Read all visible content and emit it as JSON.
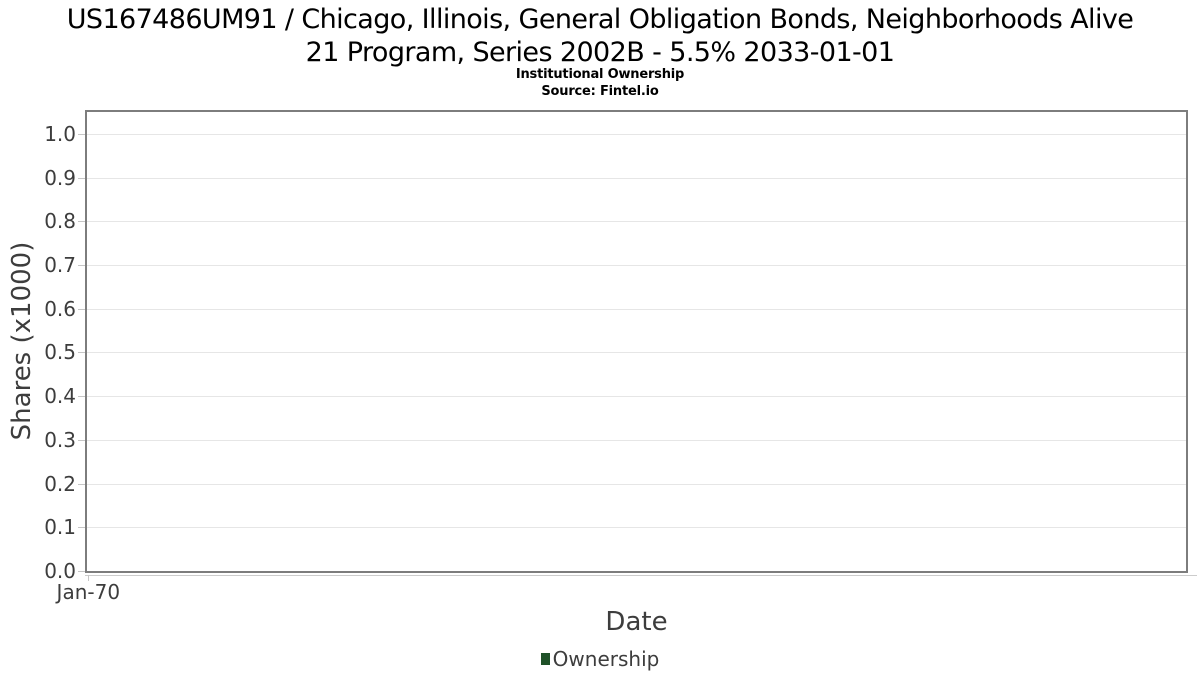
{
  "chart_data": {
    "type": "line",
    "title": "US167486UM91 / Chicago, Illinois, General Obligation Bonds, Neighborhoods Alive 21 Program, Series 2002B - 5.5% 2033-01-01",
    "title_lines": [
      "US167486UM91 / Chicago, Illinois, General Obligation Bonds, Neighborhoods Alive",
      "21 Program, Series 2002B - 5.5% 2033-01-01"
    ],
    "subtitle": "Institutional Ownership",
    "source": "Source: Fintel.io",
    "xlabel": "Date",
    "ylabel": "Shares (x1000)",
    "xticks": [
      {
        "label": "Jan-70",
        "pos": 0.003
      }
    ],
    "yticks": [
      "0.0",
      "0.1",
      "0.2",
      "0.3",
      "0.4",
      "0.5",
      "0.6",
      "0.7",
      "0.8",
      "0.9",
      "1.0"
    ],
    "ylim": [
      0,
      1.05
    ],
    "grid": "horizontal-only",
    "legend": {
      "position": "bottom-center",
      "entries": [
        {
          "label": "Ownership",
          "color": "#1f5128"
        }
      ]
    },
    "series": [
      {
        "name": "Ownership",
        "points": []
      }
    ]
  },
  "colors": {
    "background": "#ffffff",
    "title": "#000000",
    "plot_border": "#7d7d7d",
    "gridline": "#e6e6e6",
    "tick_mark": "#c6c6c6",
    "x_axis_line": "#cccccc",
    "tick_label": "#3d3d3d",
    "axis_label": "#3d3d3d",
    "legend_text": "#3d3d3d",
    "legend_marker": "#1f5128"
  }
}
